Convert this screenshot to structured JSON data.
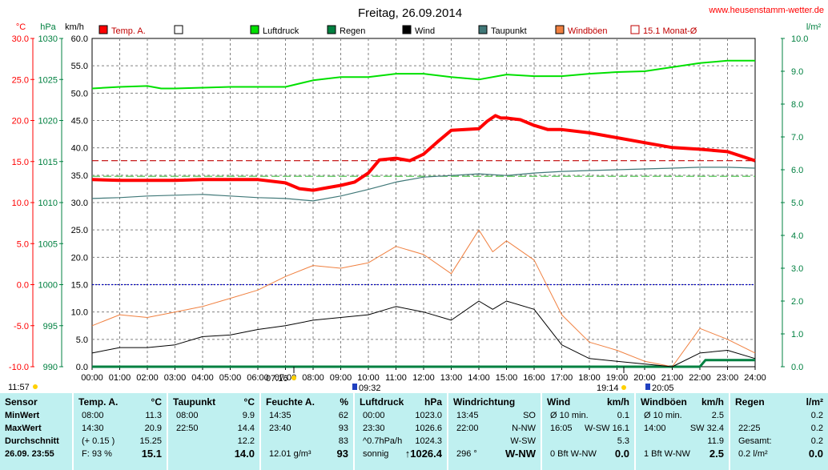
{
  "title": "Freitag, 26.09.2014",
  "website": "www.heusenstamm-wetter.de",
  "colors": {
    "temp": "#ff0000",
    "pressure": "#00e000",
    "rain": "#008040",
    "wind": "#000000",
    "dew": "#407878",
    "gusts": "#f08040",
    "avg": "#c00000",
    "zero": "#0000c0",
    "grid": "#808080",
    "rightaxis": "#008040"
  },
  "axes": {
    "temp_unit": "°C",
    "pressure_unit": "hPa",
    "wind_unit": "km/h",
    "rain_unit": "l/m²",
    "temp_ticks": [
      "30.0",
      "25.0",
      "20.0",
      "15.0",
      "10.0",
      "5.0",
      "0.0",
      "-5.0",
      "-10.0"
    ],
    "pressure_ticks": [
      "1030",
      "1025",
      "1020",
      "1015",
      "1010",
      "1005",
      "1000",
      "995",
      "990"
    ],
    "wind_ticks": [
      "60.0",
      "55.0",
      "50.0",
      "45.0",
      "40.0",
      "35.0",
      "30.0",
      "25.0",
      "20.0",
      "15.0",
      "10.0",
      "5.0",
      "0.0"
    ],
    "rain_ticks": [
      "10.0",
      "9.0",
      "8.0",
      "7.0",
      "6.0",
      "5.0",
      "4.0",
      "3.0",
      "2.0",
      "1.0",
      "0.0"
    ],
    "x_ticks": [
      "00:00",
      "01:00",
      "02:00",
      "03:00",
      "04:00",
      "05:00",
      "06:00",
      "07:00",
      "08:00",
      "09:00",
      "10:00",
      "11:00",
      "12:00",
      "13:00",
      "14:00",
      "15:00",
      "16:00",
      "17:00",
      "18:00",
      "19:00",
      "20:00",
      "21:00",
      "22:00",
      "23:00",
      "24:00"
    ]
  },
  "legend": [
    {
      "label": "Temp. A.",
      "color": "#ff0000",
      "style": "fill"
    },
    {
      "label": "",
      "color": "#ffffff",
      "style": "box"
    },
    {
      "label": "Luftdruck",
      "color": "#00e000",
      "style": "fill"
    },
    {
      "label": "Regen",
      "color": "#008040",
      "style": "fill"
    },
    {
      "label": "Wind",
      "color": "#000000",
      "style": "fill"
    },
    {
      "label": "Taupunkt",
      "color": "#407878",
      "style": "fill"
    },
    {
      "label": "Windböen",
      "color": "#f08040",
      "style": "fill"
    },
    {
      "label": "15.1 Monat-Ø",
      "color": "#c00000",
      "style": "open"
    }
  ],
  "sun_markers": {
    "sunrise_above": "11:57",
    "sunrise": "07:16",
    "moon_rise": "09:32",
    "sunset": "19:14",
    "moon_set": "20:05"
  },
  "chart_data": {
    "type": "line",
    "x_unit": "hours",
    "xlim": [
      0,
      24
    ],
    "series": [
      {
        "name": "Temp. A.",
        "axis": "temp",
        "ylim": [
          -10,
          30
        ],
        "x": [
          0,
          1,
          2,
          3,
          4,
          5,
          6,
          7,
          7.5,
          8,
          8.5,
          9,
          9.5,
          10,
          10.4,
          11,
          11.5,
          12,
          12.5,
          13,
          13.5,
          14,
          14.3,
          14.6,
          14.8,
          15,
          15.5,
          16,
          16.5,
          17,
          18,
          19,
          20,
          21,
          22,
          23,
          24
        ],
        "values": [
          12.8,
          12.7,
          12.7,
          12.7,
          12.8,
          12.8,
          12.8,
          12.4,
          11.7,
          11.5,
          11.8,
          12.1,
          12.5,
          13.6,
          15.2,
          15.4,
          15.1,
          15.9,
          17.4,
          18.8,
          18.9,
          19.0,
          19.9,
          20.6,
          20.3,
          20.3,
          20.1,
          19.4,
          18.9,
          18.9,
          18.5,
          17.9,
          17.3,
          16.7,
          16.5,
          16.2,
          15.1
        ]
      },
      {
        "name": "Taupunkt",
        "axis": "temp",
        "ylim": [
          -10,
          30
        ],
        "x": [
          0,
          1,
          2,
          3,
          4,
          5,
          6,
          7,
          8,
          9,
          9.5,
          10,
          11,
          12,
          13,
          14,
          15,
          16,
          17,
          18,
          19,
          20,
          21,
          22,
          23,
          24
        ],
        "values": [
          10.5,
          10.6,
          10.8,
          10.9,
          11.0,
          10.8,
          10.6,
          10.5,
          10.2,
          10.8,
          11.2,
          11.6,
          12.5,
          13.1,
          13.3,
          13.5,
          13.3,
          13.6,
          13.8,
          13.9,
          14.0,
          14.1,
          14.2,
          14.3,
          14.3,
          14.2
        ]
      },
      {
        "name": "Luftdruck",
        "axis": "pressure",
        "ylim": [
          990,
          1030
        ],
        "x": [
          0,
          1,
          2,
          2.5,
          3,
          4,
          5,
          6,
          7,
          8,
          9,
          10,
          11,
          12,
          13,
          14,
          15,
          16,
          17,
          18,
          19,
          20,
          21,
          22,
          23,
          24
        ],
        "values": [
          1023.9,
          1024.1,
          1024.2,
          1023.9,
          1023.9,
          1024.0,
          1024.1,
          1024.1,
          1024.1,
          1024.9,
          1025.3,
          1025.3,
          1025.7,
          1025.7,
          1025.3,
          1025.0,
          1025.6,
          1025.4,
          1025.4,
          1025.7,
          1025.9,
          1026.0,
          1026.5,
          1027.0,
          1027.3,
          1027.3
        ]
      },
      {
        "name": "Wind",
        "axis": "wind",
        "ylim": [
          0,
          60
        ],
        "x": [
          0,
          1,
          2,
          3,
          4,
          5,
          6,
          7,
          8,
          9,
          10,
          11,
          12,
          13,
          14,
          14.5,
          15,
          16,
          17,
          18,
          19,
          20,
          21,
          22,
          23,
          24
        ],
        "values": [
          2.5,
          3.5,
          3.5,
          4.0,
          5.5,
          5.8,
          6.8,
          7.5,
          8.5,
          9.0,
          9.5,
          11.0,
          10.0,
          8.5,
          12.0,
          10.5,
          12.0,
          10.5,
          4.0,
          1.5,
          1.0,
          0.5,
          0.0,
          2.5,
          3.0,
          1.5
        ]
      },
      {
        "name": "Windböen",
        "axis": "wind",
        "ylim": [
          0,
          60
        ],
        "x": [
          0,
          1,
          2,
          3,
          4,
          5,
          6,
          7,
          8,
          9,
          10,
          11,
          12,
          13,
          14,
          14.5,
          15,
          16,
          17,
          18,
          19,
          20,
          21,
          22,
          23,
          24
        ],
        "values": [
          7.5,
          9.5,
          9.0,
          10.0,
          11.0,
          12.5,
          14.0,
          16.5,
          18.5,
          18.0,
          19.0,
          22.0,
          20.5,
          17.0,
          25.0,
          21.0,
          23.0,
          19.5,
          9.5,
          4.5,
          3.0,
          1.0,
          0.0,
          7.0,
          5.0,
          2.5
        ]
      },
      {
        "name": "Regen",
        "axis": "rain",
        "ylim": [
          0,
          10
        ],
        "x": [
          0,
          21.5,
          22,
          22.2,
          22.3,
          24
        ],
        "values": [
          0,
          0,
          0,
          0.2,
          0.2,
          0.2
        ]
      },
      {
        "name": "15.1 Monat-Ø",
        "axis": "temp",
        "ylim": [
          -10,
          30
        ],
        "x": [
          0,
          24
        ],
        "values": [
          15.1,
          15.1
        ]
      },
      {
        "name": "",
        "axis": "pressure",
        "ylim": [
          990,
          1030
        ],
        "x": [
          0,
          24
        ],
        "values": [
          1013.2,
          1013.2
        ]
      },
      {
        "name": "",
        "axis": "temp",
        "ylim": [
          -10,
          30
        ],
        "x": [
          0,
          24
        ],
        "values": [
          0,
          0
        ]
      }
    ]
  },
  "table": {
    "sensor": {
      "title": "Sensor",
      "rows": [
        "MinWert",
        "MaxWert",
        "Durchschnitt",
        "26.09. 23:55"
      ]
    },
    "temp": {
      "title": "Temp. A.",
      "unit": "°C",
      "rows": [
        [
          "08:00",
          "11.3"
        ],
        [
          "14:30",
          "20.9"
        ],
        [
          "(+ 0.15 )",
          "15.25"
        ],
        [
          "F: 93 %",
          "15.1"
        ]
      ]
    },
    "dew": {
      "title": "Taupunkt",
      "unit": "°C",
      "rows": [
        [
          "08:00",
          "9.9"
        ],
        [
          "22:50",
          "14.4"
        ],
        [
          "",
          "12.2"
        ],
        [
          "",
          "14.0"
        ]
      ]
    },
    "hum": {
      "title": "Feuchte A.",
      "unit": "%",
      "rows": [
        [
          "14:35",
          "62"
        ],
        [
          "23:40",
          "93"
        ],
        [
          "",
          "83"
        ],
        [
          "12.01 g/m³",
          "93"
        ]
      ]
    },
    "press": {
      "title": "Luftdruck",
      "unit": "hPa",
      "rows": [
        [
          "00:00",
          "1023.0"
        ],
        [
          "23:30",
          "1026.6"
        ],
        [
          "^0.7hPa/h",
          "1024.3"
        ],
        [
          "sonnig",
          "↑1026.4"
        ]
      ]
    },
    "dir": {
      "title": "Windrichtung",
      "rows": [
        [
          "13:45",
          "SO"
        ],
        [
          "22:00",
          "N-NW"
        ],
        [
          "",
          "W-SW"
        ],
        [
          "296 °",
          "W-NW"
        ]
      ]
    },
    "wind": {
      "title": "Wind",
      "unit": "km/h",
      "rows": [
        [
          "Ø 10 min.",
          "0.1"
        ],
        [
          "16:05",
          "W-SW 16.1"
        ],
        [
          "",
          "5.3"
        ],
        [
          "0 Bft W-NW",
          "0.0"
        ]
      ]
    },
    "gust": {
      "title": "Windböen",
      "unit": "km/h",
      "rows": [
        [
          "Ø 10 min.",
          "2.5"
        ],
        [
          "14:00",
          "SW 32.4"
        ],
        [
          "",
          "11.9"
        ],
        [
          "1 Bft W-NW",
          "2.5"
        ]
      ]
    },
    "rain": {
      "title": "Regen",
      "unit": "l/m²",
      "rows": [
        [
          "",
          "0.2"
        ],
        [
          "22:25",
          "0.2"
        ],
        [
          "Gesamt:",
          "0.2"
        ],
        [
          "0.2 l/m²",
          "0.0"
        ]
      ]
    }
  }
}
